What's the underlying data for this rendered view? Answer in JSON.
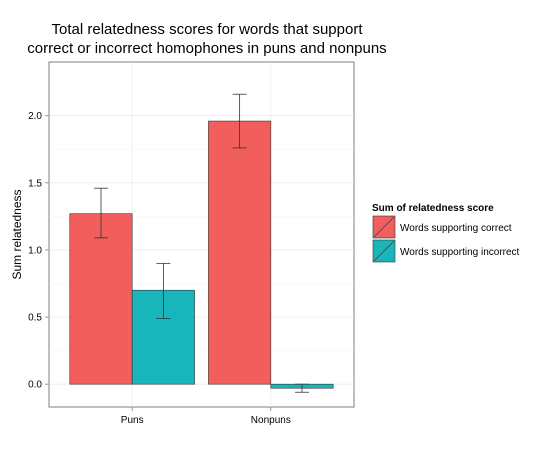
{
  "chart_data": {
    "type": "bar",
    "title_lines": [
      "Total relatedness scores for words that support",
      "correct or incorrect homophones in puns and nonpuns"
    ],
    "xlabel": "",
    "ylabel": "Sum relatedness",
    "categories": [
      "Puns",
      "Nonpuns"
    ],
    "ylim": [
      -0.17,
      2.4
    ],
    "yticks": [
      0.0,
      0.5,
      1.0,
      1.5,
      2.0
    ],
    "ytick_labels": [
      "0.0",
      "0.5",
      "1.0",
      "1.5",
      "2.0"
    ],
    "grid": true,
    "legend": {
      "title": "Sum of relatedness score",
      "placement": "right"
    },
    "series": [
      {
        "name": "Words supporting correct",
        "color": "#F15E5C",
        "values": [
          1.27,
          1.96
        ],
        "error_low": [
          1.09,
          1.76
        ],
        "error_high": [
          1.46,
          2.16
        ]
      },
      {
        "name": "Words supporting incorrect",
        "color": "#18B5BB",
        "values": [
          0.7,
          -0.03
        ],
        "error_low": [
          0.49,
          -0.06
        ],
        "error_high": [
          0.9,
          0.0
        ]
      }
    ]
  }
}
